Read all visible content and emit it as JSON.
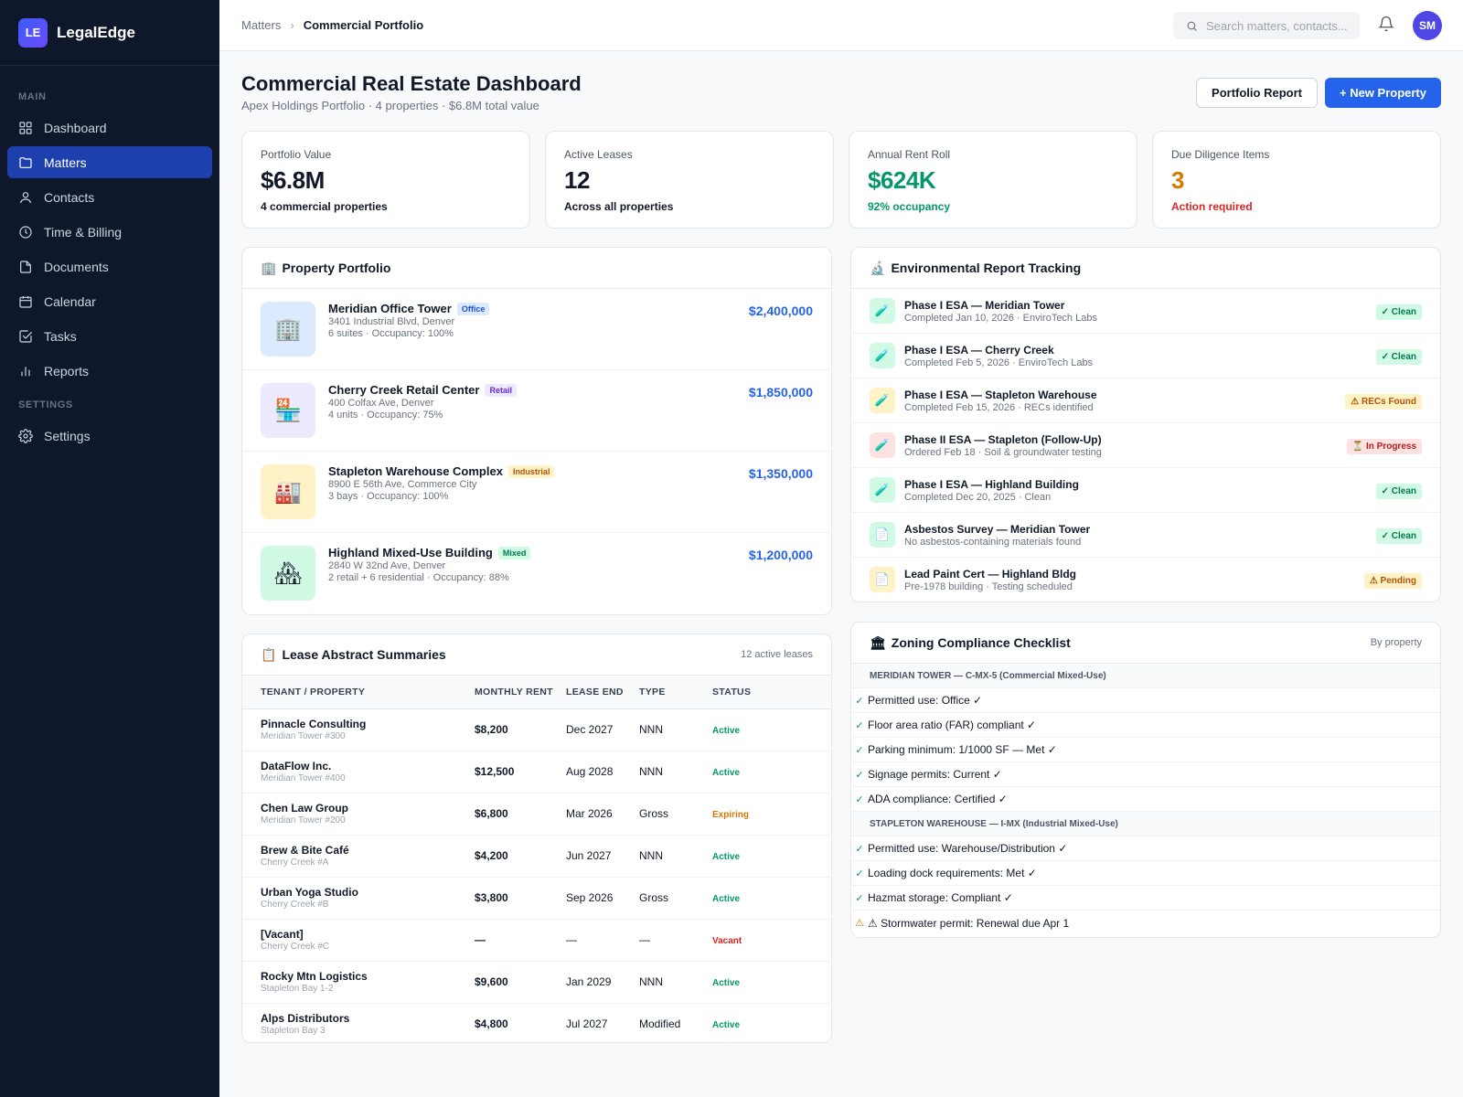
{
  "app": {
    "logo": "LE",
    "name": "LegalEdge"
  },
  "sidebar": {
    "main_label": "MAIN",
    "settings_label": "SETTINGS",
    "items": [
      {
        "label": "Dashboard",
        "icon": "grid-icon"
      },
      {
        "label": "Matters",
        "icon": "folder-icon",
        "active": true
      },
      {
        "label": "Contacts",
        "icon": "user-icon"
      },
      {
        "label": "Time & Billing",
        "icon": "clock-icon"
      },
      {
        "label": "Documents",
        "icon": "document-icon"
      },
      {
        "label": "Calendar",
        "icon": "calendar-icon"
      },
      {
        "label": "Tasks",
        "icon": "checkbox-icon"
      },
      {
        "label": "Reports",
        "icon": "bar-chart-icon"
      }
    ],
    "settings_items": [
      {
        "label": "Settings",
        "icon": "gear-icon"
      }
    ]
  },
  "topbar": {
    "breadcrumb_root": "Matters",
    "breadcrumb_sep": "›",
    "breadcrumb_current": "Commercial Portfolio",
    "search_placeholder": "Search matters, contacts...",
    "avatar": "SM"
  },
  "header": {
    "title": "Commercial Real Estate Dashboard",
    "subtitle": "Apex Holdings Portfolio · 4 properties · $6.8M total value",
    "secondary_button": "Portfolio Report",
    "primary_button": "+ New Property"
  },
  "stats": [
    {
      "label": "Portfolio Value",
      "value": "$6.8M",
      "sub": "4 commercial properties",
      "value_color": "#111827",
      "sub_color": "#111827"
    },
    {
      "label": "Active Leases",
      "value": "12",
      "sub": "Across all properties",
      "value_color": "#111827",
      "sub_color": "#111827"
    },
    {
      "label": "Annual Rent Roll",
      "value": "$624K",
      "sub": "92% occupancy",
      "value_color": "#059669",
      "sub_color": "#059669"
    },
    {
      "label": "Due Diligence Items",
      "value": "3",
      "sub": "Action required",
      "value_color": "#d97706",
      "sub_color": "#dc2626"
    }
  ],
  "portfolio": {
    "title_emoji": "🏢",
    "title": "Property Portfolio",
    "properties": [
      {
        "name": "Meridian Office Tower",
        "tag": "Office",
        "address": "3401 Industrial Blvd, Denver",
        "detail": "6 suites · Occupancy: 100%",
        "value": "$2,400,000",
        "emoji": "🏢",
        "thumb_bg": "#dbeafe",
        "tag_bg": "#dbeafe",
        "tag_color": "#1d4ed8"
      },
      {
        "name": "Cherry Creek Retail Center",
        "tag": "Retail",
        "address": "400 Colfax Ave, Denver",
        "detail": "4 units · Occupancy: 75%",
        "value": "$1,850,000",
        "emoji": "🏪",
        "thumb_bg": "#ede9fe",
        "tag_bg": "#ede9fe",
        "tag_color": "#6d28d9"
      },
      {
        "name": "Stapleton Warehouse Complex",
        "tag": "Industrial",
        "address": "8900 E 56th Ave, Commerce City",
        "detail": "3 bays · Occupancy: 100%",
        "value": "$1,350,000",
        "emoji": "🏭",
        "thumb_bg": "#fef3c7",
        "tag_bg": "#fef3c7",
        "tag_color": "#b45309"
      },
      {
        "name": "Highland Mixed-Use Building",
        "tag": "Mixed",
        "address": "2840 W 32nd Ave, Denver",
        "detail": "2 retail + 6 residential · Occupancy: 88%",
        "value": "$1,200,000",
        "emoji": "🏘",
        "thumb_bg": "#d1fae5",
        "tag_bg": "#d1fae5",
        "tag_color": "#047857"
      }
    ]
  },
  "leases": {
    "title_emoji": "📋",
    "title": "Lease Abstract Summaries",
    "meta": "12 active leases",
    "columns": [
      "TENANT / PROPERTY",
      "MONTHLY RENT",
      "LEASE END",
      "TYPE",
      "STATUS"
    ],
    "rows": [
      {
        "tenant": "Pinnacle Consulting",
        "property": "Meridian Tower #300",
        "rent": "$8,200",
        "end": "Dec 2027",
        "type": "NNN",
        "status": "Active",
        "status_color": "#059669"
      },
      {
        "tenant": "DataFlow Inc.",
        "property": "Meridian Tower #400",
        "rent": "$12,500",
        "end": "Aug 2028",
        "type": "NNN",
        "status": "Active",
        "status_color": "#059669"
      },
      {
        "tenant": "Chen Law Group",
        "property": "Meridian Tower #200",
        "rent": "$6,800",
        "end": "Mar 2026",
        "type": "Gross",
        "status": "Expiring",
        "status_color": "#d97706"
      },
      {
        "tenant": "Brew & Bite Café",
        "property": "Cherry Creek #A",
        "rent": "$4,200",
        "end": "Jun 2027",
        "type": "NNN",
        "status": "Active",
        "status_color": "#059669"
      },
      {
        "tenant": "Urban Yoga Studio",
        "property": "Cherry Creek #B",
        "rent": "$3,800",
        "end": "Sep 2026",
        "type": "Gross",
        "status": "Active",
        "status_color": "#059669"
      },
      {
        "tenant": "[Vacant]",
        "property": "Cherry Creek #C",
        "rent": "—",
        "end": "—",
        "type": "—",
        "status": "Vacant",
        "status_color": "#dc2626"
      },
      {
        "tenant": "Rocky Mtn Logistics",
        "property": "Stapleton Bay 1-2",
        "rent": "$9,600",
        "end": "Jan 2029",
        "type": "NNN",
        "status": "Active",
        "status_color": "#059669"
      },
      {
        "tenant": "Alps Distributors",
        "property": "Stapleton Bay 3",
        "rent": "$4,800",
        "end": "Jul 2027",
        "type": "Modified",
        "status": "Active",
        "status_color": "#059669"
      }
    ]
  },
  "environmental": {
    "title_emoji": "🔬",
    "title": "Environmental Report Tracking",
    "reports": [
      {
        "title": "Phase I ESA — Meridian Tower",
        "sub": "Completed Jan 10, 2026 · EnviroTech Labs",
        "badge": "✓ Clean",
        "icon": "🧪",
        "icon_bg": "#d1fae5",
        "badge_bg": "#d1fae5",
        "badge_color": "#047857"
      },
      {
        "title": "Phase I ESA — Cherry Creek",
        "sub": "Completed Feb 5, 2026 · EnviroTech Labs",
        "badge": "✓ Clean",
        "icon": "🧪",
        "icon_bg": "#d1fae5",
        "badge_bg": "#d1fae5",
        "badge_color": "#047857"
      },
      {
        "title": "Phase I ESA — Stapleton Warehouse",
        "sub": "Completed Feb 15, 2026 · RECs identified",
        "badge": "⚠ RECs Found",
        "icon": "🧪",
        "icon_bg": "#fef3c7",
        "badge_bg": "#fef3c7",
        "badge_color": "#b45309"
      },
      {
        "title": "Phase II ESA — Stapleton (Follow-Up)",
        "sub": "Ordered Feb 18 · Soil & groundwater testing",
        "badge": "⏳ In Progress",
        "icon": "🧪",
        "icon_bg": "#fee2e2",
        "badge_bg": "#fee2e2",
        "badge_color": "#b91c1c"
      },
      {
        "title": "Phase I ESA — Highland Building",
        "sub": "Completed Dec 20, 2025 · Clean",
        "badge": "✓ Clean",
        "icon": "🧪",
        "icon_bg": "#d1fae5",
        "badge_bg": "#d1fae5",
        "badge_color": "#047857"
      },
      {
        "title": "Asbestos Survey — Meridian Tower",
        "sub": "No asbestos-containing materials found",
        "badge": "✓ Clean",
        "icon": "📄",
        "icon_bg": "#d1fae5",
        "badge_bg": "#d1fae5",
        "badge_color": "#047857"
      },
      {
        "title": "Lead Paint Cert — Highland Bldg",
        "sub": "Pre-1978 building · Testing scheduled",
        "badge": "⚠ Pending",
        "icon": "📄",
        "icon_bg": "#fef3c7",
        "badge_bg": "#fef3c7",
        "badge_color": "#b45309"
      }
    ]
  },
  "zoning": {
    "title_emoji": "🏛",
    "title": "Zoning Compliance Checklist",
    "meta": "By property",
    "groups": [
      {
        "heading": "MERIDIAN TOWER — C-MX-5 (Commercial Mixed-Use)",
        "items": [
          {
            "mark": "✓",
            "mark_color": "#059669",
            "text": "Permitted use: Office ✓"
          },
          {
            "mark": "✓",
            "mark_color": "#059669",
            "text": "Floor area ratio (FAR) compliant ✓"
          },
          {
            "mark": "✓",
            "mark_color": "#059669",
            "text": "Parking minimum: 1/1000 SF — Met ✓"
          },
          {
            "mark": "✓",
            "mark_color": "#059669",
            "text": "Signage permits: Current ✓"
          },
          {
            "mark": "✓",
            "mark_color": "#059669",
            "text": "ADA compliance: Certified ✓"
          }
        ]
      },
      {
        "heading": "STAPLETON WAREHOUSE — I-MX (Industrial Mixed-Use)",
        "items": [
          {
            "mark": "✓",
            "mark_color": "#059669",
            "text": "Permitted use: Warehouse/Distribution ✓"
          },
          {
            "mark": "✓",
            "mark_color": "#059669",
            "text": "Loading dock requirements: Met ✓"
          },
          {
            "mark": "✓",
            "mark_color": "#059669",
            "text": "Hazmat storage: Compliant ✓"
          },
          {
            "mark": "⚠",
            "mark_color": "#d97706",
            "text": "⚠ Stormwater permit: Renewal due Apr 1"
          }
        ]
      }
    ]
  }
}
